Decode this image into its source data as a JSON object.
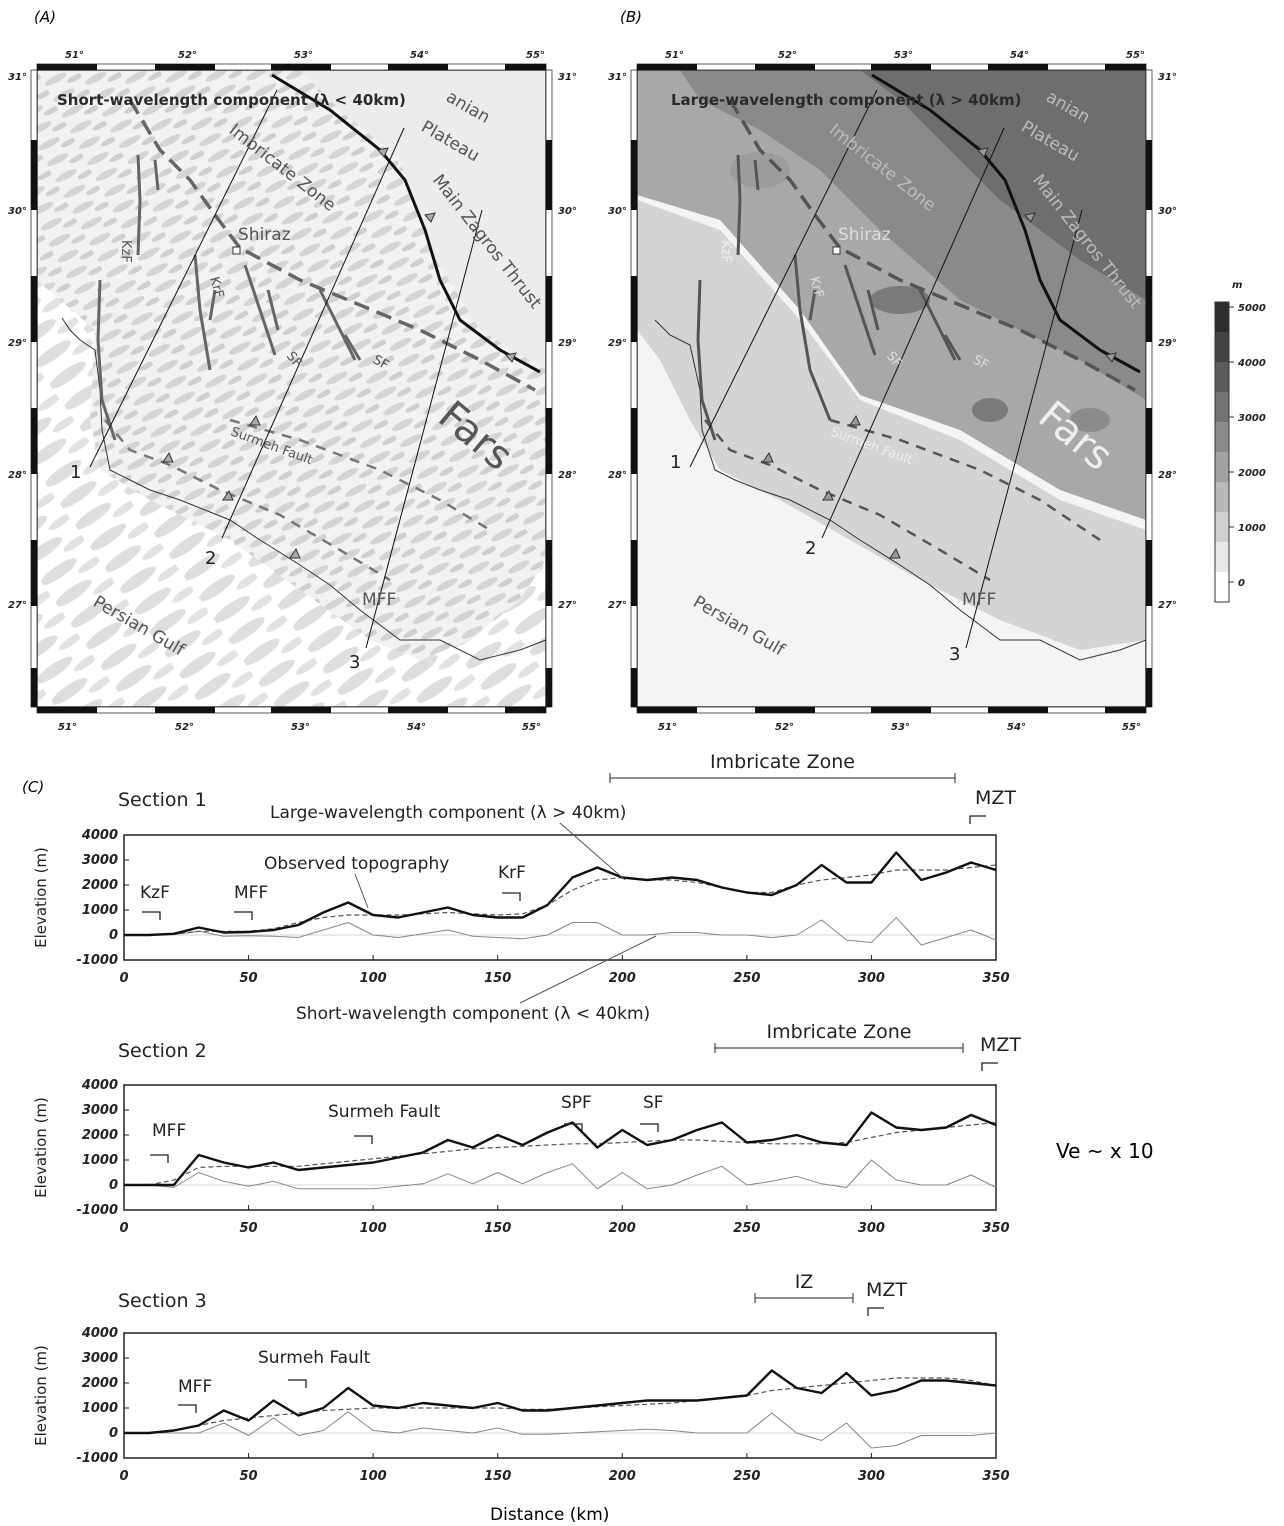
{
  "panels": {
    "a": {
      "label": "(A)",
      "title": "Short-wavelength component (λ < 40km)",
      "lon_ticks": [
        "51°",
        "52°",
        "53°",
        "54°",
        "55°"
      ],
      "lat_ticks": [
        "31°",
        "30°",
        "29°",
        "28°",
        "27°"
      ]
    },
    "b": {
      "label": "(B)",
      "title": "Large-wavelength component (λ > 40km)",
      "lon_ticks": [
        "51°",
        "52°",
        "53°",
        "54°",
        "55°"
      ],
      "lat_ticks": [
        "31°",
        "30°",
        "29°",
        "28°",
        "27°"
      ]
    },
    "c": {
      "label": "(C)"
    }
  },
  "map_labels": {
    "iranian_plateau_a": "anian",
    "iranian_plateau_b": "Plateau",
    "iranian_plateau_b_frag": "anian",
    "imbricate_zone": "Imbricate Zone",
    "shiraz": "Shiraz",
    "main_zagros_thrust": "Main Zagros Thrust",
    "fars": "Fars",
    "persian_gulf": "Persian Gulf",
    "mff": "MFF",
    "surmeh_fault": "Surmeh Fault",
    "kzf": "KzF",
    "krf": "KrF",
    "sf": "SF",
    "section_numbers": [
      "1",
      "2",
      "3"
    ]
  },
  "colorbar": {
    "unit": "m",
    "ticks": [
      "5000",
      "4000",
      "3000",
      "2000",
      "1000",
      "0"
    ],
    "levels": [
      5000,
      4000,
      3000,
      2000,
      1000,
      0
    ]
  },
  "sections": [
    {
      "title": "Section 1",
      "zone": "Imbricate Zone",
      "mzt": "MZT",
      "annotations": [
        "KzF",
        "MFF",
        "KrF"
      ],
      "legend_large": "Large-wavelength component (λ > 40km)",
      "legend_observed": "Observed topography",
      "legend_short": "Short-wavelength component (λ < 40km)"
    },
    {
      "title": "Section 2",
      "zone": "Imbricate Zone",
      "mzt": "MZT",
      "annotations": [
        "MFF",
        "Surmeh Fault",
        "SPF",
        "SF"
      ]
    },
    {
      "title": "Section 3",
      "zone": "IZ",
      "mzt": "MZT",
      "annotations": [
        "MFF",
        "Surmeh Fault"
      ]
    }
  ],
  "profile_axes": {
    "ylabel": "Elevation (m)",
    "xlabel": "Distance (km)",
    "x_ticks": [
      "0",
      "50",
      "100",
      "150",
      "200",
      "250",
      "300",
      "350"
    ],
    "y_ticks": [
      "4000",
      "3000",
      "2000",
      "1000",
      "0",
      "-1000"
    ]
  },
  "vertical_exaggeration": "Ve ~ x 10",
  "chart_data": [
    {
      "type": "line",
      "title": "Section 1",
      "xlabel": "Distance (km)",
      "ylabel": "Elevation (m)",
      "xlim": [
        0,
        350
      ],
      "ylim": [
        -1000,
        4000
      ],
      "x": [
        0,
        10,
        20,
        30,
        40,
        50,
        60,
        70,
        80,
        90,
        100,
        110,
        120,
        130,
        140,
        150,
        160,
        170,
        180,
        190,
        200,
        210,
        220,
        230,
        240,
        250,
        260,
        270,
        280,
        290,
        300,
        310,
        320,
        330,
        340,
        350
      ],
      "series": [
        {
          "name": "Observed topography",
          "values": [
            0,
            0,
            50,
            300,
            100,
            120,
            200,
            400,
            900,
            1300,
            800,
            700,
            900,
            1100,
            800,
            700,
            700,
            1200,
            2300,
            2700,
            2300,
            2200,
            2300,
            2200,
            1900,
            1700,
            1600,
            2000,
            2800,
            2100,
            2100,
            3300,
            2200,
            2500,
            2900,
            2600
          ]
        },
        {
          "name": "Large-wavelength component (λ > 40km)",
          "values": [
            0,
            0,
            30,
            150,
            150,
            150,
            250,
            500,
            700,
            800,
            800,
            800,
            850,
            900,
            850,
            800,
            850,
            1200,
            1800,
            2200,
            2300,
            2200,
            2200,
            2100,
            1900,
            1700,
            1700,
            2000,
            2200,
            2300,
            2400,
            2600,
            2600,
            2600,
            2700,
            2800
          ]
        },
        {
          "name": "Short-wavelength component (λ < 40km)",
          "values": [
            0,
            0,
            20,
            150,
            -50,
            -30,
            -50,
            -100,
            200,
            500,
            0,
            -100,
            50,
            200,
            -50,
            -100,
            -150,
            0,
            500,
            500,
            0,
            0,
            100,
            100,
            0,
            0,
            -100,
            0,
            600,
            -200,
            -300,
            700,
            -400,
            -100,
            200,
            -200
          ]
        }
      ]
    },
    {
      "type": "line",
      "title": "Section 2",
      "xlabel": "Distance (km)",
      "ylabel": "Elevation (m)",
      "xlim": [
        0,
        350
      ],
      "ylim": [
        -1000,
        4000
      ],
      "x": [
        0,
        10,
        20,
        30,
        40,
        50,
        60,
        70,
        80,
        90,
        100,
        110,
        120,
        130,
        140,
        150,
        160,
        170,
        180,
        190,
        200,
        210,
        220,
        230,
        240,
        250,
        260,
        270,
        280,
        290,
        300,
        310,
        320,
        330,
        340,
        350
      ],
      "series": [
        {
          "name": "Observed topography",
          "values": [
            0,
            0,
            0,
            1200,
            900,
            700,
            900,
            600,
            700,
            800,
            900,
            1100,
            1300,
            1800,
            1500,
            2000,
            1600,
            2100,
            2500,
            1500,
            2200,
            1600,
            1800,
            2200,
            2500,
            1700,
            1800,
            2000,
            1700,
            1600,
            2900,
            2300,
            2200,
            2300,
            2800,
            2400
          ]
        },
        {
          "name": "Large-wavelength component (λ > 40km)",
          "values": [
            0,
            0,
            200,
            700,
            750,
            750,
            750,
            750,
            850,
            950,
            1050,
            1150,
            1250,
            1350,
            1450,
            1500,
            1550,
            1600,
            1650,
            1650,
            1700,
            1750,
            1800,
            1800,
            1750,
            1700,
            1650,
            1650,
            1650,
            1700,
            1900,
            2100,
            2200,
            2300,
            2400,
            2500
          ]
        },
        {
          "name": "Short-wavelength component (λ < 40km)",
          "values": [
            0,
            0,
            -100,
            500,
            150,
            -50,
            150,
            -150,
            -150,
            -150,
            -150,
            -50,
            50,
            450,
            50,
            500,
            50,
            500,
            850,
            -150,
            500,
            -150,
            0,
            400,
            750,
            0,
            150,
            350,
            50,
            -100,
            1000,
            200,
            0,
            0,
            400,
            -100
          ]
        }
      ]
    },
    {
      "type": "line",
      "title": "Section 3",
      "xlabel": "Distance (km)",
      "ylabel": "Elevation (m)",
      "xlim": [
        0,
        350
      ],
      "ylim": [
        -1000,
        4000
      ],
      "x": [
        0,
        10,
        20,
        30,
        40,
        50,
        60,
        70,
        80,
        90,
        100,
        110,
        120,
        130,
        140,
        150,
        160,
        170,
        180,
        190,
        200,
        210,
        220,
        230,
        240,
        250,
        260,
        270,
        280,
        290,
        300,
        310,
        320,
        330,
        340,
        350
      ],
      "series": [
        {
          "name": "Observed topography",
          "values": [
            0,
            0,
            100,
            300,
            900,
            500,
            1300,
            700,
            1000,
            1800,
            1100,
            1000,
            1200,
            1100,
            1000,
            1200,
            900,
            900,
            1000,
            1100,
            1200,
            1300,
            1300,
            1300,
            1400,
            1500,
            2500,
            1800,
            1600,
            2400,
            1500,
            1700,
            2100,
            2100,
            2000,
            1900
          ]
        },
        {
          "name": "Large-wavelength component (λ > 40km)",
          "values": [
            0,
            0,
            100,
            300,
            500,
            600,
            700,
            800,
            900,
            950,
            1000,
            1000,
            1000,
            1000,
            1000,
            1000,
            950,
            950,
            1000,
            1050,
            1100,
            1150,
            1200,
            1300,
            1400,
            1500,
            1700,
            1800,
            1900,
            2000,
            2100,
            2200,
            2200,
            2200,
            2100,
            1900
          ]
        },
        {
          "name": "Short-wavelength component (λ < 40km)",
          "values": [
            0,
            0,
            0,
            0,
            400,
            -100,
            600,
            -100,
            100,
            850,
            100,
            0,
            200,
            100,
            0,
            200,
            -50,
            -50,
            0,
            50,
            100,
            150,
            100,
            0,
            0,
            0,
            800,
            0,
            -300,
            400,
            -600,
            -500,
            -100,
            -100,
            -100,
            0
          ]
        }
      ]
    }
  ]
}
